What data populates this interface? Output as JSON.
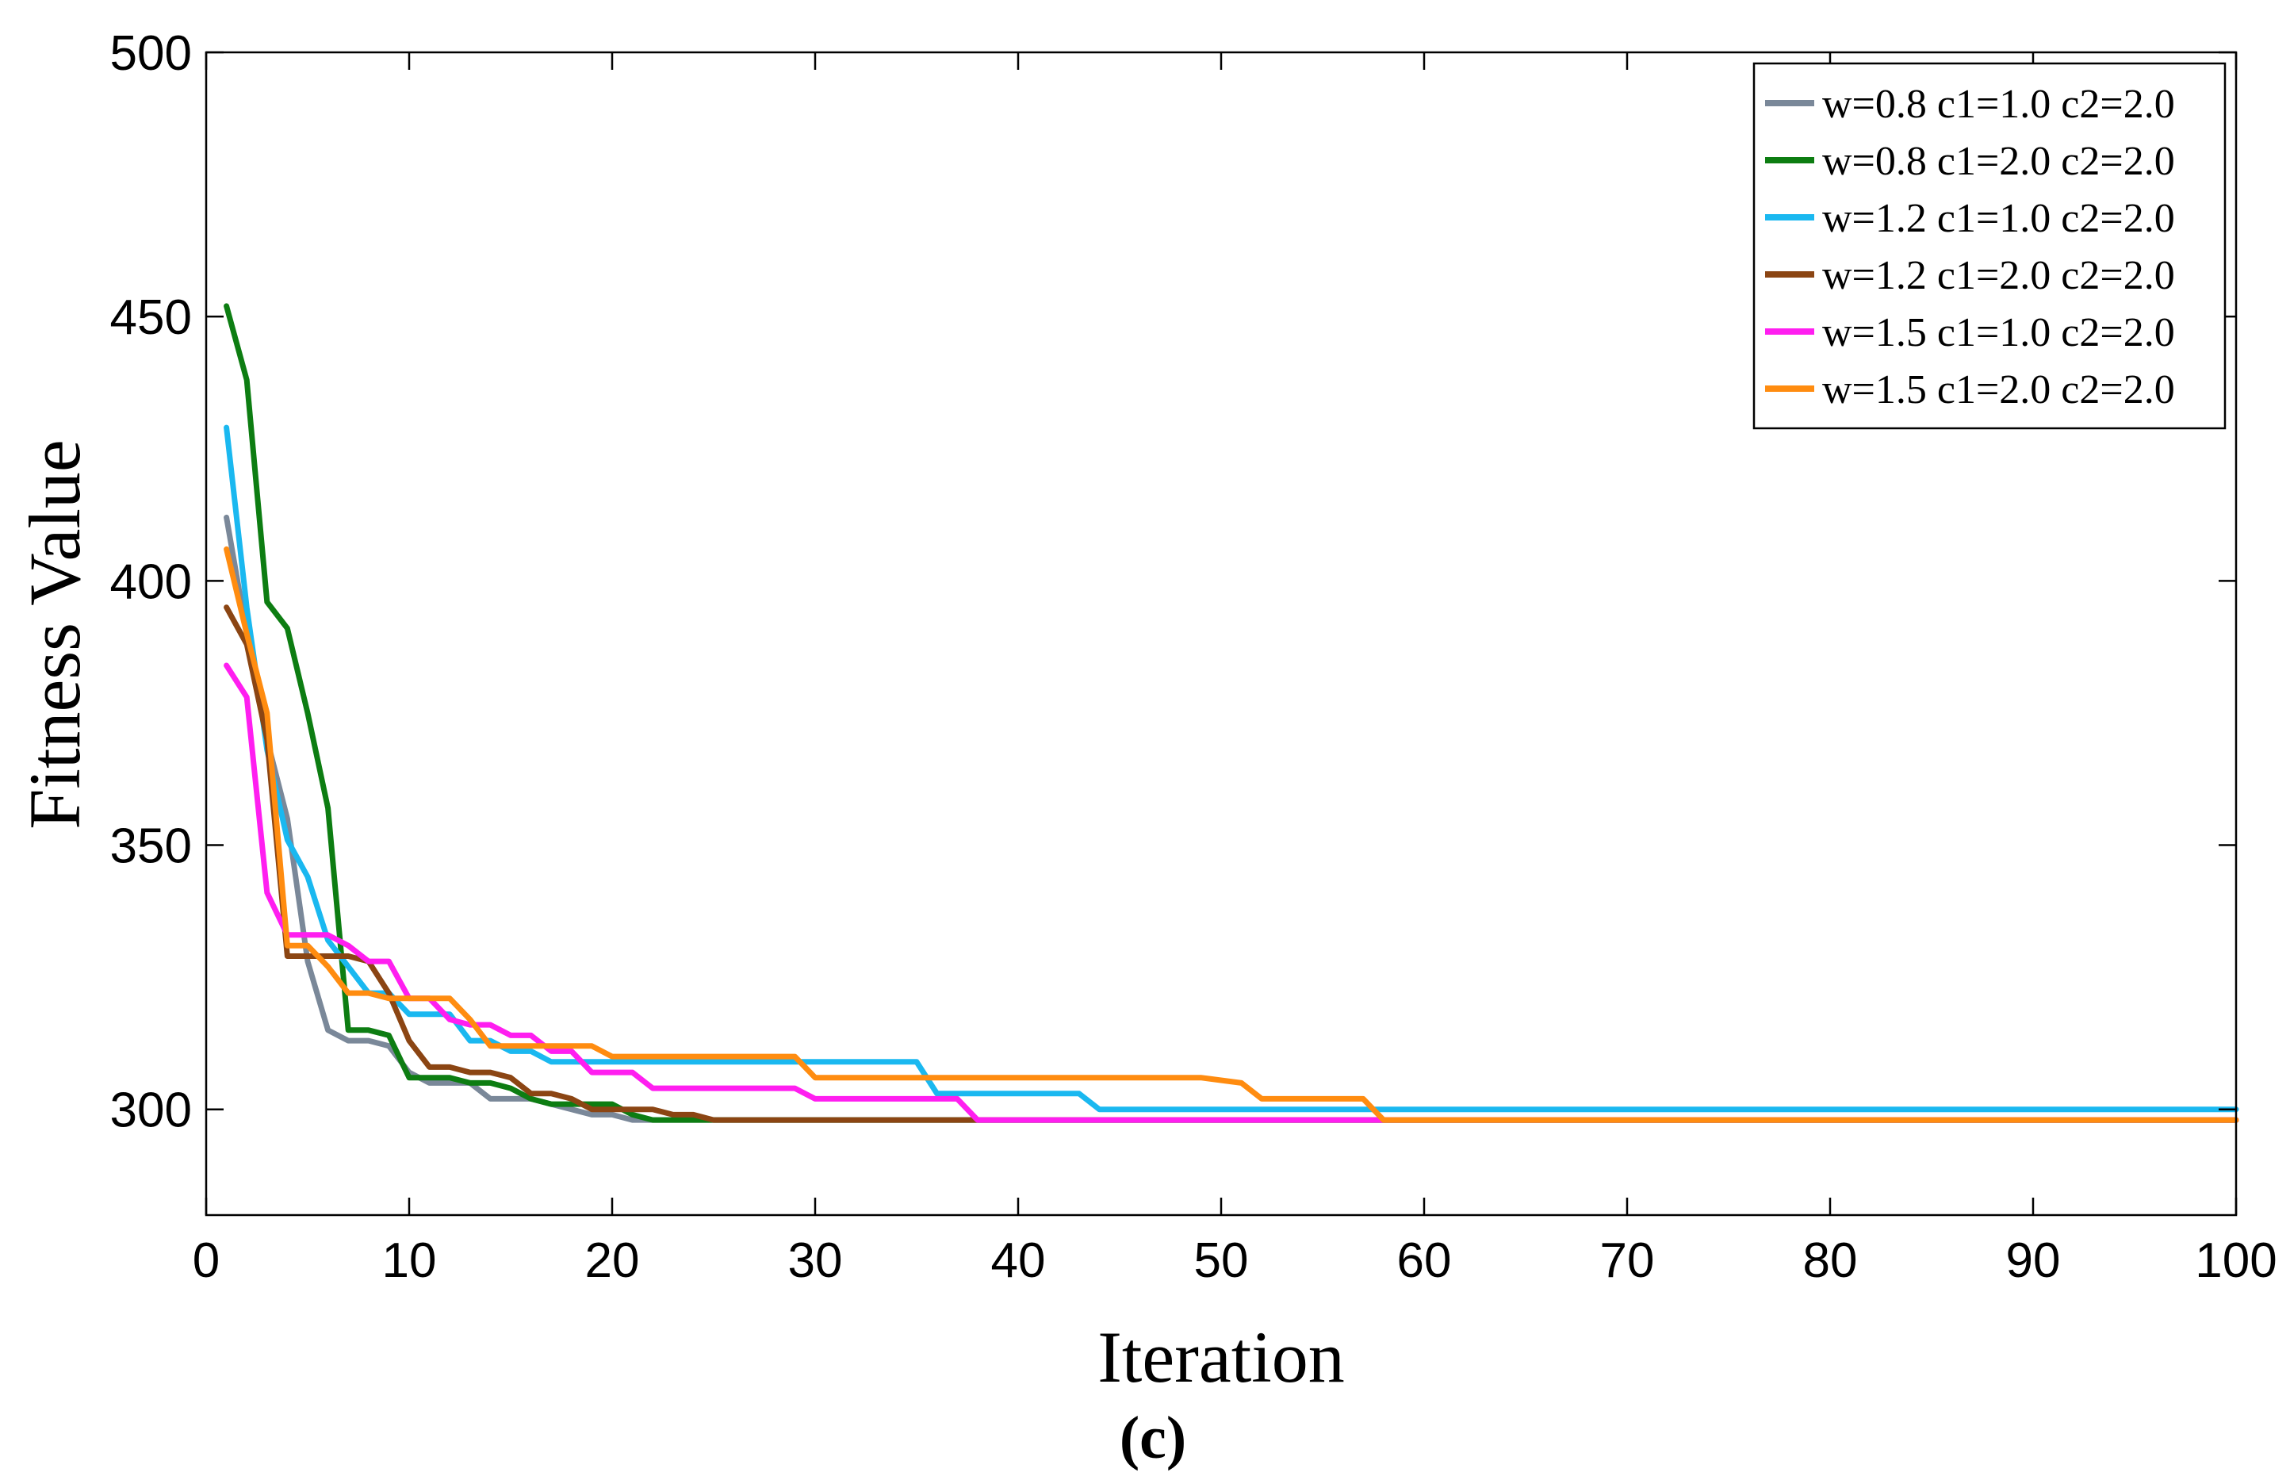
{
  "chart_data": {
    "type": "line",
    "title": "",
    "xlabel": "Iteration",
    "ylabel": "Fitness Value",
    "panel_label": "(c)",
    "xlim": [
      0,
      100
    ],
    "ylim": [
      280,
      500
    ],
    "xticks": [
      0,
      10,
      20,
      30,
      40,
      50,
      60,
      70,
      80,
      90,
      100
    ],
    "yticks": [
      300,
      350,
      400,
      450,
      500
    ],
    "grid": false,
    "legend_position": "top-right",
    "series": [
      {
        "name": "w=0.8 c1=1.0 c2=2.0",
        "color": "#7a8899",
        "points": [
          [
            1,
            412
          ],
          [
            2,
            390
          ],
          [
            3,
            370
          ],
          [
            4,
            355
          ],
          [
            5,
            328
          ],
          [
            6,
            315
          ],
          [
            7,
            313
          ],
          [
            8,
            313
          ],
          [
            9,
            312
          ],
          [
            10,
            307
          ],
          [
            11,
            305
          ],
          [
            12,
            305
          ],
          [
            13,
            305
          ],
          [
            14,
            302
          ],
          [
            15,
            302
          ],
          [
            16,
            302
          ],
          [
            17,
            301
          ],
          [
            18,
            300
          ],
          [
            19,
            299
          ],
          [
            20,
            299
          ],
          [
            21,
            298
          ],
          [
            22,
            298
          ],
          [
            100,
            298
          ]
        ]
      },
      {
        "name": "w=0.8 c1=2.0 c2=2.0",
        "color": "#0d7d12",
        "points": [
          [
            1,
            452
          ],
          [
            2,
            438
          ],
          [
            3,
            396
          ],
          [
            4,
            391
          ],
          [
            5,
            375
          ],
          [
            6,
            357
          ],
          [
            7,
            315
          ],
          [
            8,
            315
          ],
          [
            9,
            314
          ],
          [
            10,
            306
          ],
          [
            11,
            306
          ],
          [
            12,
            306
          ],
          [
            13,
            305
          ],
          [
            14,
            305
          ],
          [
            15,
            304
          ],
          [
            16,
            302
          ],
          [
            17,
            301
          ],
          [
            18,
            301
          ],
          [
            19,
            301
          ],
          [
            20,
            301
          ],
          [
            21,
            299
          ],
          [
            22,
            298
          ],
          [
            100,
            298
          ]
        ]
      },
      {
        "name": "w=1.2 c1=1.0 c2=2.0",
        "color": "#1ab8f0",
        "points": [
          [
            1,
            429
          ],
          [
            2,
            395
          ],
          [
            3,
            368
          ],
          [
            4,
            351
          ],
          [
            5,
            344
          ],
          [
            6,
            332
          ],
          [
            7,
            327
          ],
          [
            8,
            322
          ],
          [
            9,
            322
          ],
          [
            10,
            318
          ],
          [
            11,
            318
          ],
          [
            12,
            318
          ],
          [
            13,
            313
          ],
          [
            14,
            313
          ],
          [
            15,
            311
          ],
          [
            16,
            311
          ],
          [
            17,
            309
          ],
          [
            18,
            309
          ],
          [
            19,
            309
          ],
          [
            20,
            309
          ],
          [
            21,
            309
          ],
          [
            29,
            309
          ],
          [
            30,
            309
          ],
          [
            35,
            309
          ],
          [
            36,
            303
          ],
          [
            43,
            303
          ],
          [
            44,
            300
          ],
          [
            100,
            300
          ]
        ]
      },
      {
        "name": "w=1.2 c1=2.0 c2=2.0",
        "color": "#8b4513",
        "points": [
          [
            1,
            395
          ],
          [
            2,
            388
          ],
          [
            3,
            370
          ],
          [
            4,
            329
          ],
          [
            5,
            329
          ],
          [
            6,
            329
          ],
          [
            7,
            329
          ],
          [
            8,
            328
          ],
          [
            9,
            322
          ],
          [
            10,
            313
          ],
          [
            11,
            308
          ],
          [
            12,
            308
          ],
          [
            13,
            307
          ],
          [
            14,
            307
          ],
          [
            15,
            306
          ],
          [
            16,
            303
          ],
          [
            17,
            303
          ],
          [
            18,
            302
          ],
          [
            19,
            300
          ],
          [
            20,
            300
          ],
          [
            21,
            300
          ],
          [
            22,
            300
          ],
          [
            23,
            299
          ],
          [
            24,
            299
          ],
          [
            25,
            298
          ],
          [
            100,
            298
          ]
        ]
      },
      {
        "name": "w=1.5 c1=1.0 c2=2.0",
        "color": "#ff1ef0",
        "points": [
          [
            1,
            384
          ],
          [
            2,
            378
          ],
          [
            3,
            341
          ],
          [
            4,
            333
          ],
          [
            5,
            333
          ],
          [
            6,
            333
          ],
          [
            7,
            331
          ],
          [
            8,
            328
          ],
          [
            9,
            328
          ],
          [
            10,
            321
          ],
          [
            11,
            321
          ],
          [
            12,
            317
          ],
          [
            13,
            316
          ],
          [
            14,
            316
          ],
          [
            15,
            314
          ],
          [
            16,
            314
          ],
          [
            17,
            311
          ],
          [
            18,
            311
          ],
          [
            19,
            307
          ],
          [
            20,
            307
          ],
          [
            21,
            307
          ],
          [
            22,
            304
          ],
          [
            29,
            304
          ],
          [
            30,
            302
          ],
          [
            37,
            302
          ],
          [
            38,
            298
          ],
          [
            100,
            298
          ]
        ]
      },
      {
        "name": "w=1.5 c1=2.0 c2=2.0",
        "color": "#ff8c10",
        "points": [
          [
            1,
            406
          ],
          [
            2,
            390
          ],
          [
            3,
            375
          ],
          [
            4,
            331
          ],
          [
            5,
            331
          ],
          [
            6,
            327
          ],
          [
            7,
            322
          ],
          [
            8,
            322
          ],
          [
            9,
            321
          ],
          [
            10,
            321
          ],
          [
            11,
            321
          ],
          [
            12,
            321
          ],
          [
            13,
            317
          ],
          [
            14,
            312
          ],
          [
            15,
            312
          ],
          [
            16,
            312
          ],
          [
            17,
            312
          ],
          [
            18,
            312
          ],
          [
            19,
            312
          ],
          [
            20,
            310
          ],
          [
            21,
            310
          ],
          [
            29,
            310
          ],
          [
            30,
            306
          ],
          [
            49,
            306
          ],
          [
            51,
            305
          ],
          [
            52,
            302
          ],
          [
            57,
            302
          ],
          [
            58,
            298
          ],
          [
            100,
            298
          ]
        ]
      }
    ]
  }
}
